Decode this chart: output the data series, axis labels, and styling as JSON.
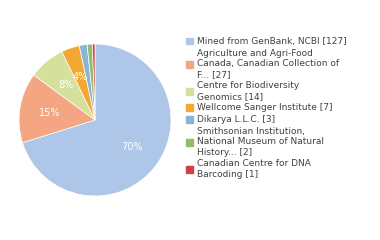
{
  "labels": [
    "Mined from GenBank, NCBI [127]",
    "Agriculture and Agri-Food\nCanada, Canadian Collection of\nF... [27]",
    "Centre for Biodiversity\nGenomics [14]",
    "Wellcome Sanger Institute [7]",
    "Dikarya L.L.C. [3]",
    "Smithsonian Institution,\nNational Museum of Natural\nHistory... [2]",
    "Canadian Centre for DNA\nBarcoding [1]"
  ],
  "values": [
    127,
    27,
    14,
    7,
    3,
    2,
    1
  ],
  "colors": [
    "#aec6e8",
    "#f4a582",
    "#d4e09b",
    "#f4a833",
    "#8ab4d4",
    "#8fbc6f",
    "#d04040"
  ],
  "background_color": "#ffffff",
  "text_color": "#404040",
  "startangle": 90,
  "label_fontsize": 6.5,
  "pct_fontsize": 7.0
}
